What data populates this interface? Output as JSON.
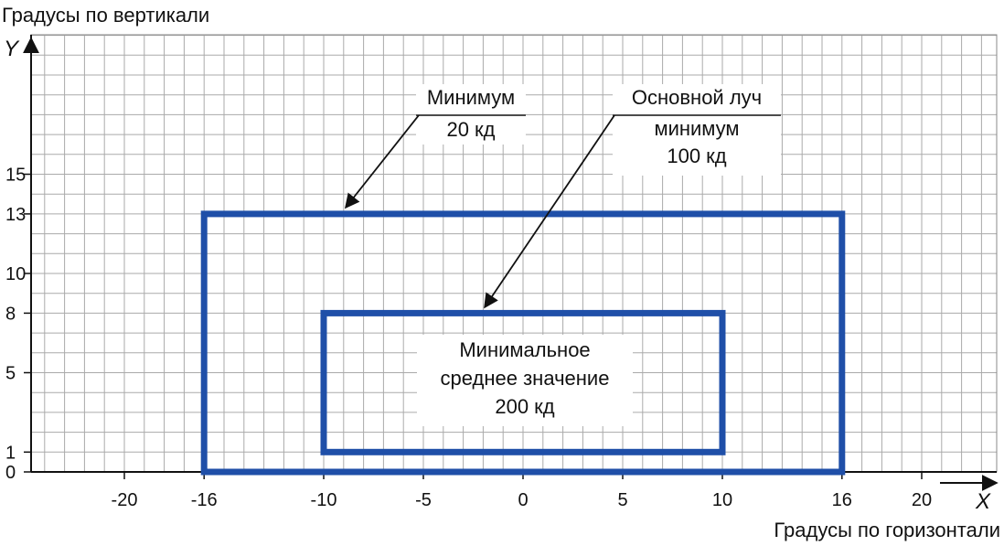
{
  "axes": {
    "y_title": "Градусы по вертикали",
    "x_title": "Градусы по горизонтали",
    "y_letter": "Y",
    "x_letter": "X",
    "x_ticks": [
      -20,
      -16,
      -10,
      -5,
      0,
      5,
      10,
      16,
      20
    ],
    "y_ticks": [
      0,
      1,
      5,
      8,
      10,
      13,
      15
    ],
    "grid_step": 1,
    "x_range": [
      -25,
      23
    ],
    "y_range": [
      0,
      22
    ]
  },
  "zones": [
    {
      "name": "outer-zone",
      "x_min": -16,
      "x_max": 16,
      "y_min": 0,
      "y_max": 13
    },
    {
      "name": "inner-zone",
      "x_min": -10,
      "x_max": 10,
      "y_min": 1,
      "y_max": 8
    }
  ],
  "annotations": {
    "minimum": [
      "Минимум",
      "20 кд"
    ],
    "main_beam": [
      "Основной луч",
      "минимум",
      "100 кд"
    ],
    "average": [
      "Минимальное",
      "среднее значение",
      "200 кд"
    ]
  },
  "colors": {
    "zone_border": "#1f4fa8",
    "grid": "#aaaaaa",
    "axis": "#111111"
  }
}
